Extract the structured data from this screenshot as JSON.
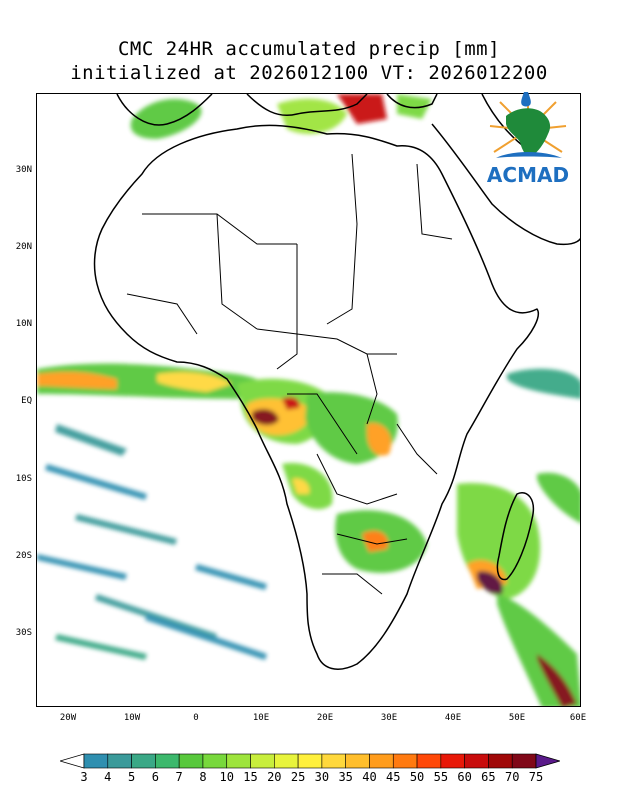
{
  "title_line1": "CMC 24HR accumulated precip [mm]",
  "title_line2": "initialized at 2026012100 VT: 2026012200",
  "y_ticks": [
    "30N",
    "20N",
    "10N",
    "EQ",
    "10S",
    "20S",
    "30S"
  ],
  "x_ticks": [
    "20W",
    "10W",
    "0",
    "10E",
    "20E",
    "30E",
    "40E",
    "50E",
    "60E"
  ],
  "logo_text": "ACMAD",
  "colorbar": {
    "levels": [
      "3",
      "4",
      "5",
      "6",
      "7",
      "8",
      "10",
      "15",
      "20",
      "25",
      "30",
      "35",
      "40",
      "45",
      "50",
      "55",
      "60",
      "65",
      "70",
      "75"
    ],
    "colors": [
      "#2f8fb0",
      "#3a9a9a",
      "#3aa886",
      "#3cb86c",
      "#58c83c",
      "#78d83c",
      "#9ee43c",
      "#c8ee3c",
      "#e8f43c",
      "#fff03c",
      "#ffd83c",
      "#ffbe2c",
      "#ff9c1c",
      "#ff7a10",
      "#ff4808",
      "#e81808",
      "#c80c0c",
      "#a00808",
      "#800818",
      "#5a0a3a"
    ],
    "under_color": "#ffffff",
    "over_color": "#5a1a8a"
  },
  "map_extent": {
    "lon": [
      -25,
      60
    ],
    "lat": [
      -40,
      40
    ]
  }
}
